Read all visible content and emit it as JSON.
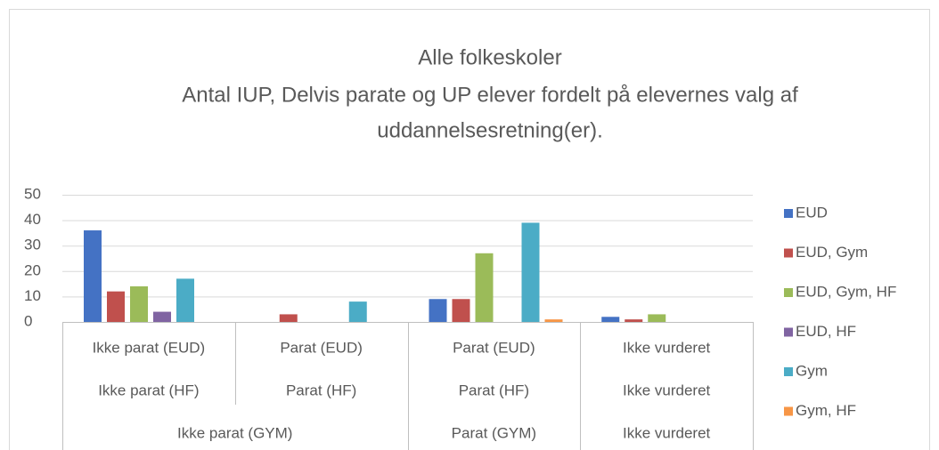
{
  "chart_data": {
    "type": "bar",
    "title": "Alle folkeskoler",
    "subtitle": [
      "Antal IUP, Delvis parate og UP elever fordelt på elevernes valg af",
      "uddannelsesretning(er)."
    ],
    "categories": [
      "Ikke parat (EUD)",
      "Parat (EUD)",
      "Parat (EUD)",
      "Ikke vurderet"
    ],
    "categories_level2": [
      "Ikke parat (HF)",
      "Parat (HF)",
      "Parat (HF)",
      "Ikke vurderet"
    ],
    "categories_level3": [
      "Ikke parat (GYM)",
      null,
      "Parat (GYM)",
      "Ikke vurderet"
    ],
    "series": [
      {
        "name": "EUD",
        "color": "#4472c4",
        "values": [
          36,
          0,
          9,
          2
        ]
      },
      {
        "name": "EUD, Gym",
        "color": "#c0504d",
        "values": [
          12,
          3,
          9,
          1
        ]
      },
      {
        "name": "EUD, Gym, HF",
        "color": "#9bbb59",
        "values": [
          14,
          0,
          27,
          3
        ]
      },
      {
        "name": "EUD, HF",
        "color": "#8064a2",
        "values": [
          4,
          0,
          0,
          0
        ]
      },
      {
        "name": "Gym",
        "color": "#4bacc6",
        "values": [
          17,
          8,
          39,
          0
        ]
      },
      {
        "name": "Gym, HF",
        "color": "#f79646",
        "values": [
          0,
          0,
          1,
          0
        ]
      }
    ],
    "ylim": [
      0,
      50
    ],
    "yticks": [
      0,
      10,
      20,
      30,
      40,
      50
    ],
    "grid": true,
    "legend": "right"
  }
}
